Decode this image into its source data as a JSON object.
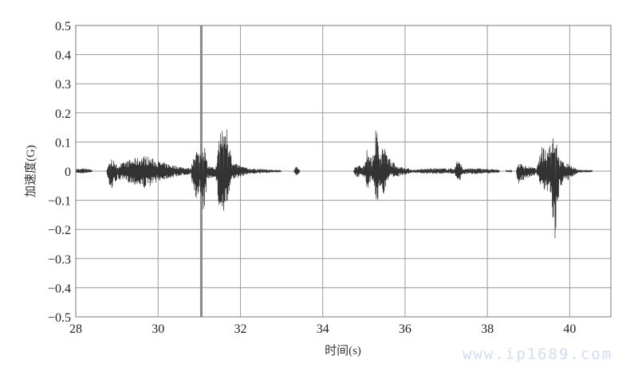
{
  "chart_data": {
    "type": "line",
    "xlabel": "时间(s)",
    "ylabel": "加速度(G)",
    "xlim": [
      28,
      41
    ],
    "ylim": [
      -0.5,
      0.5
    ],
    "xticks": [
      28,
      30,
      32,
      34,
      36,
      38,
      40
    ],
    "yticks": [
      0.5,
      0.4,
      0.3,
      0.2,
      0.1,
      0,
      -0.1,
      -0.2,
      -0.3,
      -0.4,
      -0.5
    ],
    "ytick_labels": [
      "0.5",
      "0.4",
      "0.3",
      "0.2",
      "0.1",
      "0",
      "−0.1",
      "−0.2",
      "−0.3",
      "−0.4",
      "−0.5"
    ],
    "grid": true,
    "line_color": "#333333",
    "marker_line": {
      "x": 31.05,
      "ymin": -0.5,
      "ymax": 0.5,
      "color": "#888888"
    },
    "envelope_points_t_max_min": [
      [
        [
          28.0,
          0.008,
          -0.006
        ],
        [
          28.2,
          0.01,
          -0.008
        ],
        [
          28.4,
          0.006,
          -0.004
        ]
      ],
      [
        [
          28.75,
          0.003,
          -0.003
        ],
        [
          28.85,
          0.05,
          -0.07
        ],
        [
          29.0,
          0.02,
          -0.03
        ],
        [
          29.3,
          0.04,
          -0.04
        ],
        [
          29.7,
          0.055,
          -0.06
        ],
        [
          30.0,
          0.035,
          -0.035
        ],
        [
          30.4,
          0.02,
          -0.02
        ],
        [
          30.8,
          0.01,
          -0.01
        ],
        [
          30.9,
          0.09,
          -0.12
        ],
        [
          31.0,
          0.06,
          -0.06
        ],
        [
          31.1,
          0.12,
          -0.17
        ],
        [
          31.2,
          0.02,
          -0.03
        ],
        [
          31.4,
          0.01,
          -0.02
        ],
        [
          31.5,
          0.15,
          -0.16
        ],
        [
          31.6,
          0.17,
          -0.14
        ],
        [
          31.7,
          0.15,
          -0.13
        ],
        [
          31.8,
          0.03,
          -0.03
        ],
        [
          32.2,
          0.01,
          -0.01
        ],
        [
          33.0,
          0.003,
          -0.003
        ]
      ],
      [
        [
          33.3,
          0.002,
          -0.002
        ],
        [
          33.35,
          0.02,
          -0.018
        ],
        [
          33.45,
          0.002,
          -0.002
        ]
      ],
      [
        [
          34.75,
          0.003,
          -0.003
        ],
        [
          34.8,
          0.02,
          -0.02
        ],
        [
          35.0,
          0.02,
          -0.02
        ],
        [
          35.1,
          0.1,
          -0.07
        ],
        [
          35.2,
          0.03,
          -0.03
        ],
        [
          35.3,
          0.16,
          -0.14
        ],
        [
          35.4,
          0.05,
          -0.05
        ],
        [
          35.5,
          0.11,
          -0.1
        ],
        [
          35.6,
          0.05,
          -0.02
        ],
        [
          35.8,
          0.02,
          -0.02
        ],
        [
          36.2,
          0.005,
          -0.005
        ],
        [
          36.6,
          0.01,
          -0.01
        ],
        [
          37.2,
          0.01,
          -0.008
        ],
        [
          37.3,
          0.05,
          -0.045
        ],
        [
          37.4,
          0.01,
          -0.01
        ],
        [
          37.8,
          0.01,
          -0.01
        ],
        [
          38.3,
          0.005,
          -0.005
        ]
      ],
      [
        [
          38.45,
          0.002,
          -0.002
        ],
        [
          38.6,
          0.002,
          -0.002
        ]
      ],
      [
        [
          38.7,
          0.003,
          -0.003
        ],
        [
          38.75,
          0.03,
          -0.05
        ],
        [
          38.9,
          0.02,
          -0.03
        ],
        [
          39.2,
          0.01,
          -0.01
        ],
        [
          39.35,
          0.1,
          -0.07
        ],
        [
          39.45,
          0.07,
          -0.08
        ],
        [
          39.55,
          0.14,
          -0.1
        ],
        [
          39.65,
          0.13,
          -0.27
        ],
        [
          39.75,
          0.04,
          -0.06
        ],
        [
          39.9,
          0.03,
          -0.03
        ],
        [
          40.0,
          0.025,
          -0.03
        ],
        [
          40.2,
          0.005,
          -0.005
        ],
        [
          40.55,
          0.004,
          -0.004
        ]
      ]
    ]
  },
  "watermark": "www.ip1689.com"
}
